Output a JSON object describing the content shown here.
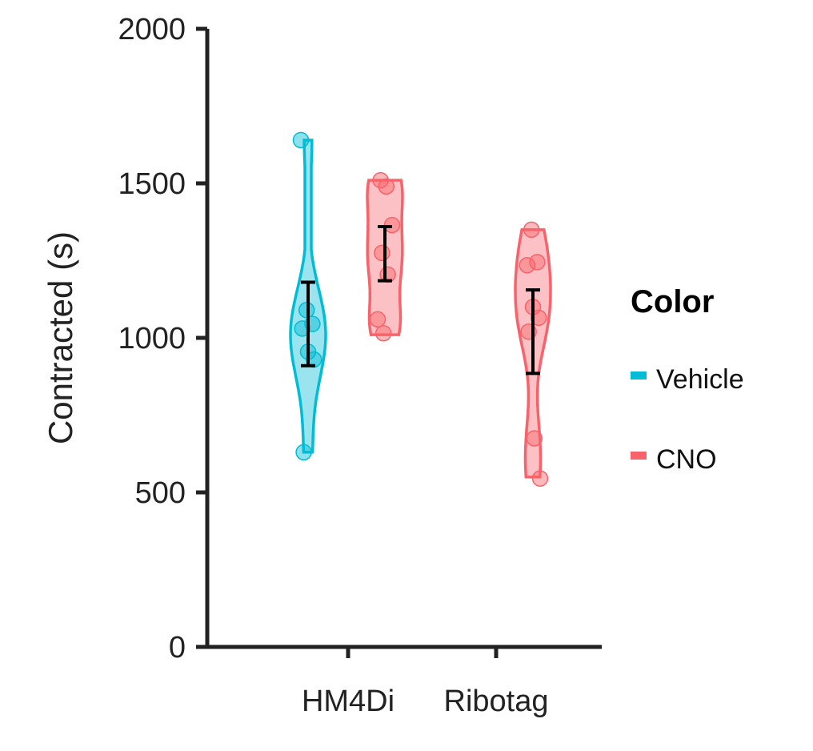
{
  "chart_data": {
    "type": "violin",
    "ylabel": "Contracted (s)",
    "xlabel": "",
    "ylim": [
      0,
      2000
    ],
    "yticks": [
      0,
      500,
      1000,
      1500,
      2000
    ],
    "categories": [
      "HM4Di",
      "Ribotag"
    ],
    "grid": false,
    "legend": {
      "title": "Color",
      "placement": "right",
      "entries": [
        {
          "label": "Vehicle",
          "color": "#00BCD4"
        },
        {
          "label": "CNO",
          "color": "#F8636B"
        }
      ]
    },
    "groups": [
      {
        "category": "HM4Di",
        "series": "Vehicle",
        "points": [
          1640,
          1090,
          1045,
          1030,
          955,
          930,
          630
        ],
        "range": [
          630,
          1640
        ],
        "mean": 1045,
        "error": [
          910,
          1180
        ]
      },
      {
        "category": "HM4Di",
        "series": "CNO",
        "points": [
          1510,
          1490,
          1365,
          1275,
          1205,
          1060,
          1015
        ],
        "range": [
          1010,
          1510
        ],
        "mean": 1275,
        "error": [
          1185,
          1360
        ]
      },
      {
        "category": "Ribotag",
        "series": "CNO",
        "points": [
          1350,
          1245,
          1235,
          1100,
          1065,
          1020,
          675,
          545
        ],
        "range": [
          550,
          1350
        ],
        "mean": 1020,
        "error": [
          885,
          1155
        ]
      }
    ]
  }
}
